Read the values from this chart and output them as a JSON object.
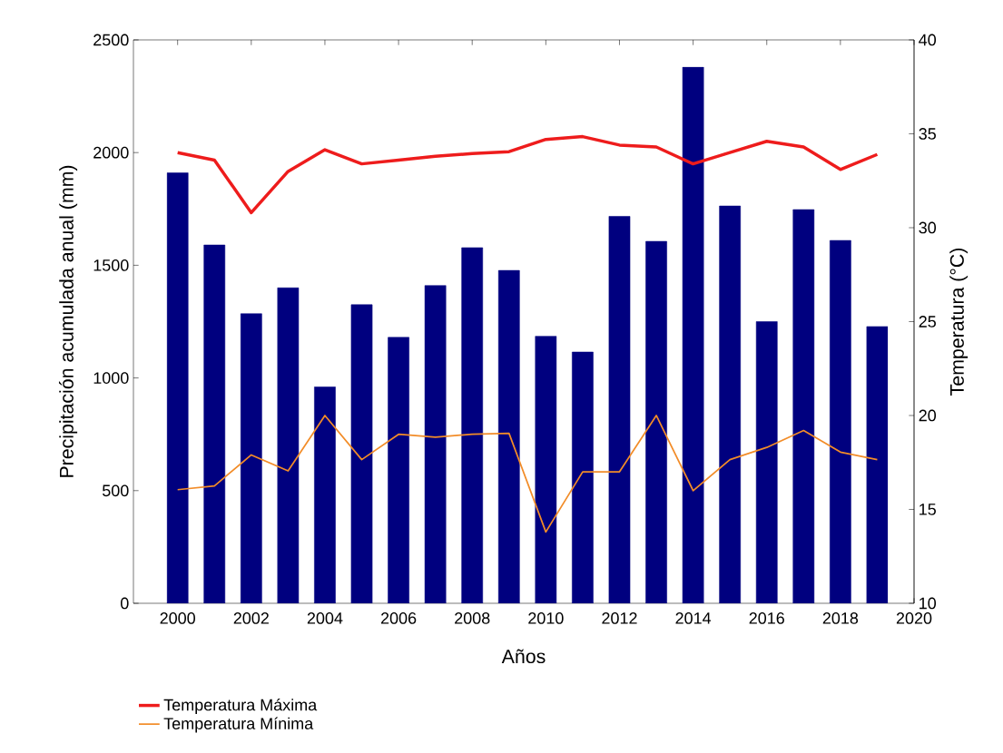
{
  "chart_data": {
    "type": "bar",
    "xlabel": "Años",
    "ylabel": "Precipitación acumulada anual (mm)",
    "y2label": "Temperatura (°C)",
    "x": [
      2000,
      2001,
      2002,
      2003,
      2004,
      2005,
      2006,
      2007,
      2008,
      2009,
      2010,
      2011,
      2012,
      2013,
      2014,
      2015,
      2016,
      2017,
      2018,
      2019
    ],
    "xlim": [
      1998.8,
      2020
    ],
    "xticks": [
      2000,
      2002,
      2004,
      2006,
      2008,
      2010,
      2012,
      2014,
      2016,
      2018,
      2020
    ],
    "ylim": [
      0,
      2500
    ],
    "yticks": [
      0,
      500,
      1000,
      1500,
      2000,
      2500
    ],
    "y2lim": [
      10,
      40
    ],
    "y2ticks": [
      10,
      15,
      20,
      25,
      30,
      35,
      40
    ],
    "legend": "bottom left",
    "grid": false,
    "marker": "none",
    "line_style": "solid",
    "series": [
      {
        "color": "#00007f",
        "values": [
          1910,
          1590,
          1285,
          1400,
          960,
          1325,
          1180,
          1410,
          1578,
          1477,
          1185,
          1115,
          1717,
          1606,
          2379,
          1763,
          1250,
          1747,
          1610,
          1228
        ]
      },
      {
        "type": "line",
        "axis": "y2",
        "name": "Temperatura Máxima",
        "color": "#ee1c1c",
        "values": [
          34.0,
          33.6,
          30.8,
          33.0,
          34.15,
          33.4,
          33.6,
          33.8,
          33.95,
          34.05,
          34.7,
          34.85,
          34.4,
          34.3,
          33.4,
          34.0,
          34.6,
          34.3,
          33.1,
          33.9
        ]
      },
      {
        "type": "line",
        "axis": "y2",
        "name": "Temperatura Mínima",
        "color": "#f28c28",
        "values": [
          16.05,
          16.25,
          17.9,
          17.05,
          20.0,
          17.65,
          19.0,
          18.85,
          19.0,
          19.05,
          13.8,
          17.0,
          17.0,
          20.0,
          16.0,
          17.65,
          18.3,
          19.2,
          18.05,
          17.65
        ]
      }
    ]
  }
}
